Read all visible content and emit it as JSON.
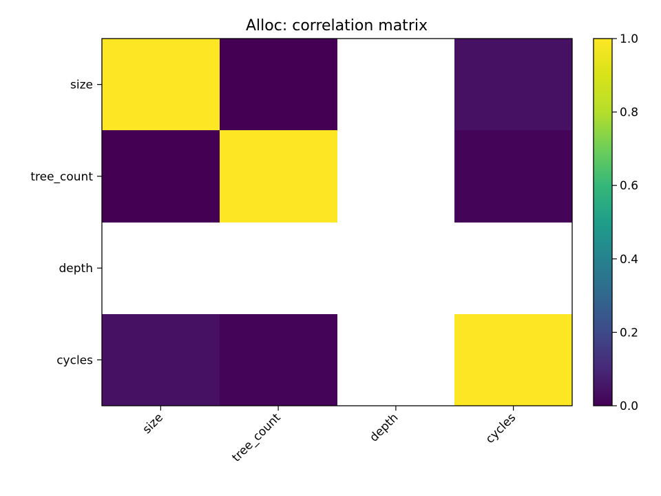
{
  "chart_data": {
    "type": "heatmap",
    "title": "Alloc: correlation matrix",
    "xlabel": "",
    "ylabel": "",
    "x_categories": [
      "size",
      "tree_count",
      "depth",
      "cycles"
    ],
    "y_categories": [
      "size",
      "tree_count",
      "depth",
      "cycles"
    ],
    "values": [
      [
        1.0,
        0.0,
        null,
        0.04
      ],
      [
        0.0,
        1.0,
        null,
        0.01
      ],
      [
        null,
        null,
        null,
        null
      ],
      [
        0.04,
        0.01,
        null,
        1.0
      ]
    ],
    "colormap": "viridis",
    "vmin": 0.0,
    "vmax": 1.0,
    "missing_color": "#ffffff",
    "colorbar": {
      "ticks": [
        0.0,
        0.2,
        0.4,
        0.6,
        0.8,
        1.0
      ],
      "tick_labels": [
        "0.0",
        "0.2",
        "0.4",
        "0.6",
        "0.8",
        "1.0"
      ],
      "placement": "right"
    },
    "grid": false
  }
}
